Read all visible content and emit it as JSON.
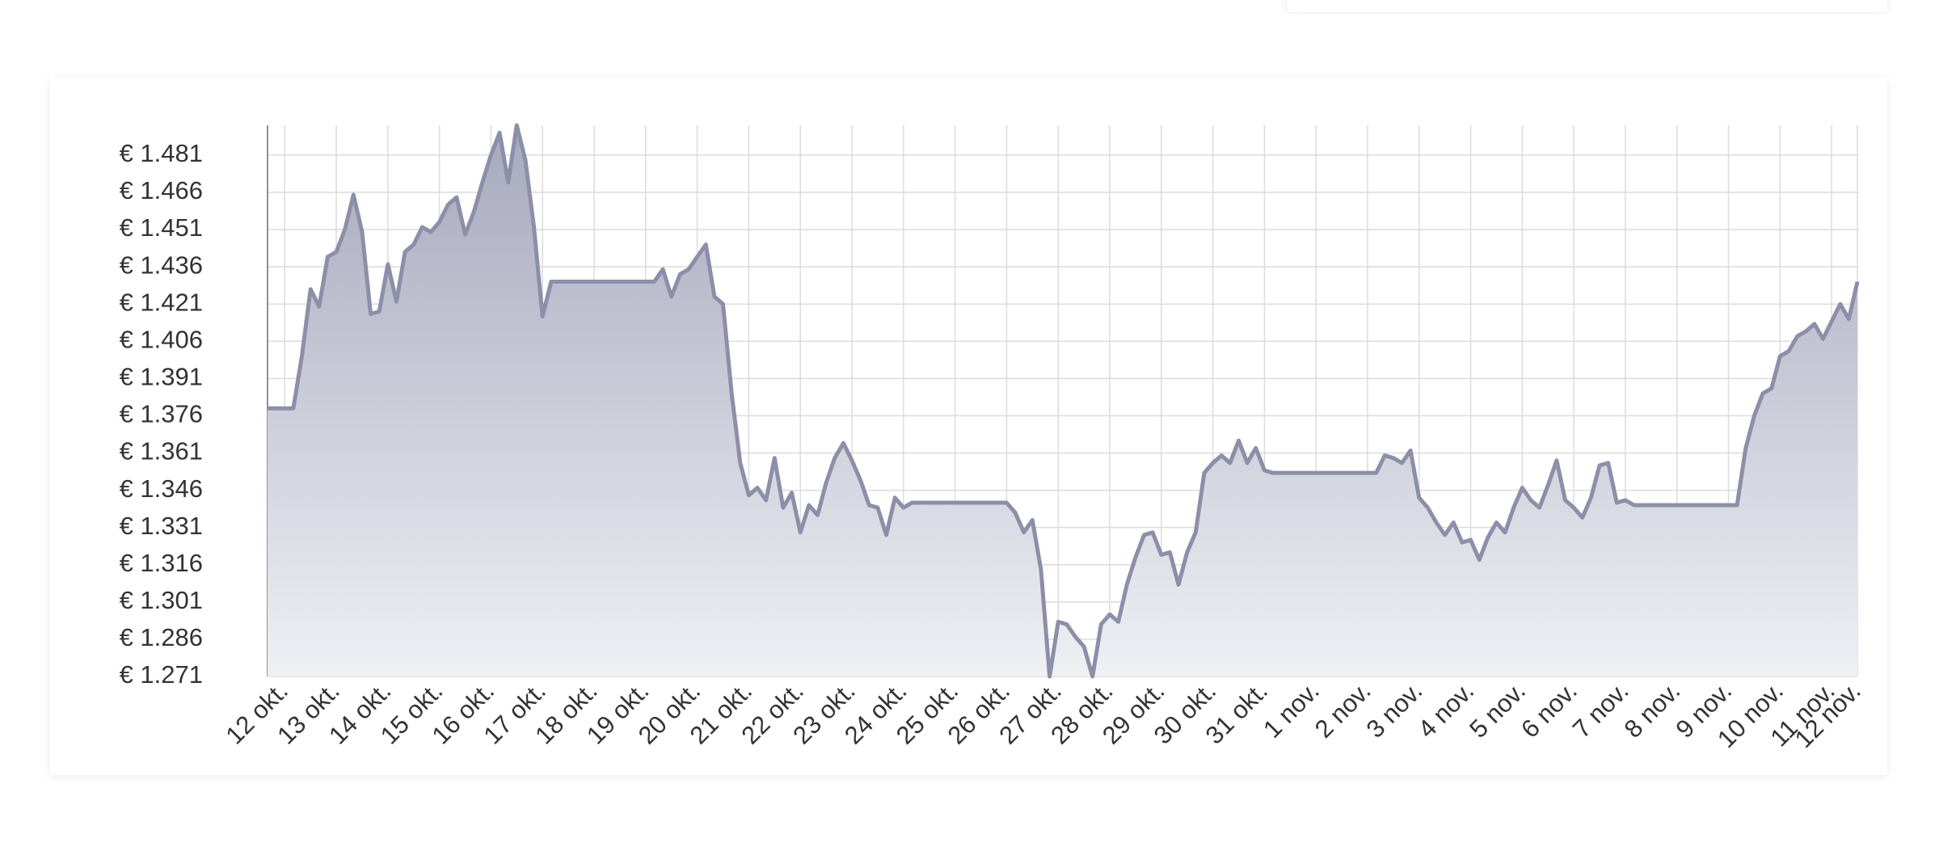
{
  "chart_data": {
    "type": "area",
    "categories": [
      null,
      null,
      "12 okt.",
      null,
      null,
      null,
      null,
      null,
      "13 okt.",
      null,
      null,
      null,
      null,
      null,
      "14 okt.",
      null,
      null,
      null,
      null,
      null,
      "15 okt.",
      null,
      null,
      null,
      null,
      null,
      "16 okt.",
      null,
      null,
      null,
      null,
      null,
      "17 okt.",
      null,
      null,
      null,
      null,
      null,
      "18 okt.",
      null,
      null,
      null,
      null,
      null,
      "19 okt.",
      null,
      null,
      null,
      null,
      null,
      "20 okt.",
      null,
      null,
      null,
      null,
      null,
      "21 okt.",
      null,
      null,
      null,
      null,
      null,
      "22 okt.",
      null,
      null,
      null,
      null,
      null,
      "23 okt.",
      null,
      null,
      null,
      null,
      null,
      "24 okt.",
      null,
      null,
      null,
      null,
      null,
      "25 okt.",
      null,
      null,
      null,
      null,
      null,
      "26 okt.",
      null,
      null,
      null,
      null,
      null,
      "27 okt.",
      null,
      null,
      null,
      null,
      null,
      "28 okt.",
      null,
      null,
      null,
      null,
      null,
      "29 okt.",
      null,
      null,
      null,
      null,
      null,
      "30 okt.",
      null,
      null,
      null,
      null,
      null,
      "31 okt.",
      null,
      null,
      null,
      null,
      null,
      "1 nov.",
      null,
      null,
      null,
      null,
      null,
      "2 nov.",
      null,
      null,
      null,
      null,
      null,
      "3 nov.",
      null,
      null,
      null,
      null,
      null,
      "4 nov.",
      null,
      null,
      null,
      null,
      null,
      "5 nov.",
      null,
      null,
      null,
      null,
      null,
      "6 nov.",
      null,
      null,
      null,
      null,
      null,
      "7 nov.",
      null,
      null,
      null,
      null,
      null,
      "8 nov.",
      null,
      null,
      null,
      null,
      null,
      "9 nov.",
      null,
      null,
      null,
      null,
      null,
      "10 nov.",
      null,
      null,
      null,
      null,
      null,
      "11 nov.",
      null,
      null,
      "12 nov."
    ],
    "values": [
      1379,
      1379,
      1379,
      1379,
      1400,
      1427,
      1420,
      1440,
      1442,
      1451,
      1465,
      1450,
      1417,
      1418,
      1437,
      1422,
      1442,
      1445,
      1452,
      1450,
      1454,
      1461,
      1464,
      1449,
      1458,
      1470,
      1481,
      1490,
      1470,
      1493,
      1479,
      1452,
      1416,
      1430,
      1430,
      1430,
      1430,
      1430,
      1430,
      1430,
      1430,
      1430,
      1430,
      1430,
      1430,
      1430,
      1435,
      1424,
      1433,
      1435,
      1440,
      1445,
      1424,
      1421,
      1385,
      1357,
      1344,
      1347,
      1342,
      1359,
      1339,
      1345,
      1329,
      1340,
      1336,
      1349,
      1359,
      1365,
      1358,
      1350,
      1340,
      1339,
      1328,
      1343,
      1339,
      1341,
      1341,
      1341,
      1341,
      1341,
      1341,
      1341,
      1341,
      1341,
      1341,
      1341,
      1341,
      1337,
      1329,
      1334,
      1314,
      1271,
      1293,
      1292,
      1287,
      1283,
      1271,
      1292,
      1296,
      1293,
      1308,
      1319,
      1328,
      1329,
      1320,
      1321,
      1308,
      1321,
      1329,
      1353,
      1357,
      1360,
      1357,
      1366,
      1357,
      1363,
      1354,
      1353,
      1353,
      1353,
      1353,
      1353,
      1353,
      1353,
      1353,
      1353,
      1353,
      1353,
      1353,
      1353,
      1360,
      1359,
      1357,
      1362,
      1343,
      1339,
      1333,
      1328,
      1333,
      1325,
      1326,
      1318,
      1327,
      1333,
      1329,
      1339,
      1347,
      1342,
      1339,
      1348,
      1358,
      1342,
      1339,
      1335,
      1343,
      1356,
      1357,
      1341,
      1342,
      1340,
      1340,
      1340,
      1340,
      1340,
      1340,
      1340,
      1340,
      1340,
      1340,
      1340,
      1340,
      1340,
      1363,
      1376,
      1385,
      1387,
      1400,
      1402,
      1408,
      1410,
      1413,
      1407,
      1414,
      1421,
      1415,
      1430
    ],
    "color": "#8c8fa8",
    "ylim": [
      1271,
      1493
    ],
    "yticks": [
      {
        "value": 1481,
        "label": "€ 1.481"
      },
      {
        "value": 1466,
        "label": "€ 1.466"
      },
      {
        "value": 1451,
        "label": "€ 1.451"
      },
      {
        "value": 1436,
        "label": "€ 1.436"
      },
      {
        "value": 1421,
        "label": "€ 1.421"
      },
      {
        "value": 1406,
        "label": "€ 1.406"
      },
      {
        "value": 1391,
        "label": "€ 1.391"
      },
      {
        "value": 1376,
        "label": "€ 1.376"
      },
      {
        "value": 1361,
        "label": "€ 1.361"
      },
      {
        "value": 1346,
        "label": "€ 1.346"
      },
      {
        "value": 1331,
        "label": "€ 1.331"
      },
      {
        "value": 1316,
        "label": "€ 1.316"
      },
      {
        "value": 1301,
        "label": "€ 1.301"
      },
      {
        "value": 1286,
        "label": "€ 1.286"
      },
      {
        "value": 1271,
        "label": "€ 1.271"
      }
    ],
    "grid": true
  }
}
